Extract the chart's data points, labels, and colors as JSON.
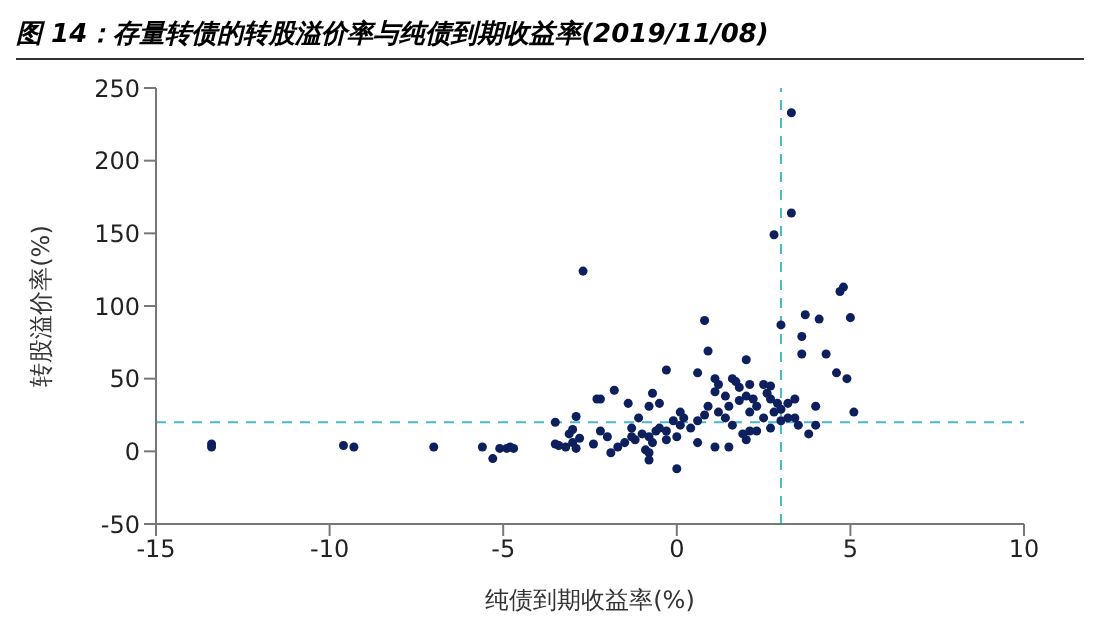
{
  "chart_data": {
    "type": "scatter",
    "title": "图 14：存量转债的转股溢价率与纯债到期收益率(2019/11/08)",
    "xlabel": "纯债到期收益率(%)",
    "ylabel": "转股溢价率(%)",
    "xlim": [
      -15,
      10
    ],
    "xticks": [
      -15,
      -10,
      -5,
      0,
      5,
      10
    ],
    "ylim": [
      -50,
      250
    ],
    "yticks": [
      -50,
      0,
      50,
      100,
      150,
      200,
      250
    ],
    "marker": "circle",
    "ref_lines": [
      {
        "axis": "y",
        "value": 20,
        "color": "#4bb8c8",
        "line_style": "dashed"
      },
      {
        "axis": "x",
        "value": 3,
        "color": "#4bb8c8",
        "line_style": "dashed"
      }
    ],
    "series": [
      {
        "color": "#0d1f5c",
        "x": [
          -13.4,
          -13.4,
          -9.6,
          -9.3,
          -7.0,
          -5.6,
          -5.3,
          -5.1,
          -4.9,
          -4.8,
          -4.7,
          -3.5,
          -3.5,
          -3.4,
          -3.2,
          -3.1,
          -3.0,
          -3.0,
          -2.9,
          -2.8,
          -2.9,
          -2.7,
          -2.4,
          -2.2,
          0.8,
          3.3,
          3.3,
          2.8,
          3.0,
          3.7,
          4.1,
          4.7,
          4.8,
          5.0,
          3.6,
          0.9,
          -0.3,
          0.6,
          2.0,
          3.6,
          4.3,
          4.6,
          4.9,
          -2.3,
          -1.8,
          -1.4,
          -0.7,
          -0.8,
          -0.5,
          1.1,
          1.2,
          1.6,
          1.7,
          1.8,
          2.1,
          2.5,
          2.7,
          1.1,
          1.4,
          1.5,
          1.8,
          2.0,
          2.2,
          2.3,
          2.6,
          2.7,
          2.9,
          3.0,
          3.2,
          3.4,
          3.4,
          3.2,
          3.0,
          2.8,
          2.5,
          2.1,
          2.1,
          1.9,
          1.6,
          1.4,
          1.2,
          0.9,
          0.8,
          0.6,
          0.4,
          0.2,
          0.1,
          0.1,
          -0.1,
          -0.3,
          -0.5,
          -0.6,
          -0.8,
          -1.0,
          -1.2,
          -1.3,
          -1.5,
          -1.7,
          -1.9,
          -2.0,
          -2.2,
          -1.1,
          -1.3,
          -0.9,
          -0.7,
          -0.3,
          0.0,
          0.6,
          1.1,
          1.5,
          2.0,
          2.3,
          2.7,
          -0.8,
          3.5,
          4.0,
          3.8,
          4.0,
          5.1,
          -0.8,
          0.0
        ],
        "values": [
          5,
          3,
          4,
          3,
          3,
          3,
          -5,
          2,
          2,
          3,
          2,
          20,
          5,
          4,
          3,
          12,
          15,
          6,
          2,
          9,
          24,
          124,
          5,
          36,
          90,
          233,
          164,
          149,
          87,
          94,
          91,
          110,
          113,
          92,
          79,
          69,
          56,
          54,
          63,
          67,
          67,
          54,
          50,
          36,
          42,
          33,
          40,
          31,
          33,
          50,
          46,
          50,
          48,
          44,
          46,
          46,
          45,
          41,
          38,
          31,
          35,
          38,
          36,
          31,
          40,
          36,
          33,
          29,
          33,
          36,
          23,
          23,
          21,
          27,
          23,
          27,
          14,
          12,
          18,
          23,
          27,
          31,
          25,
          21,
          16,
          23,
          27,
          18,
          21,
          14,
          16,
          14,
          10,
          12,
          8,
          10,
          6,
          3,
          -1,
          10,
          14,
          23,
          16,
          1,
          6,
          8,
          10,
          6,
          3,
          3,
          8,
          14,
          16,
          -1,
          18,
          18,
          12,
          31,
          27,
          -6,
          -12
        ]
      }
    ]
  }
}
